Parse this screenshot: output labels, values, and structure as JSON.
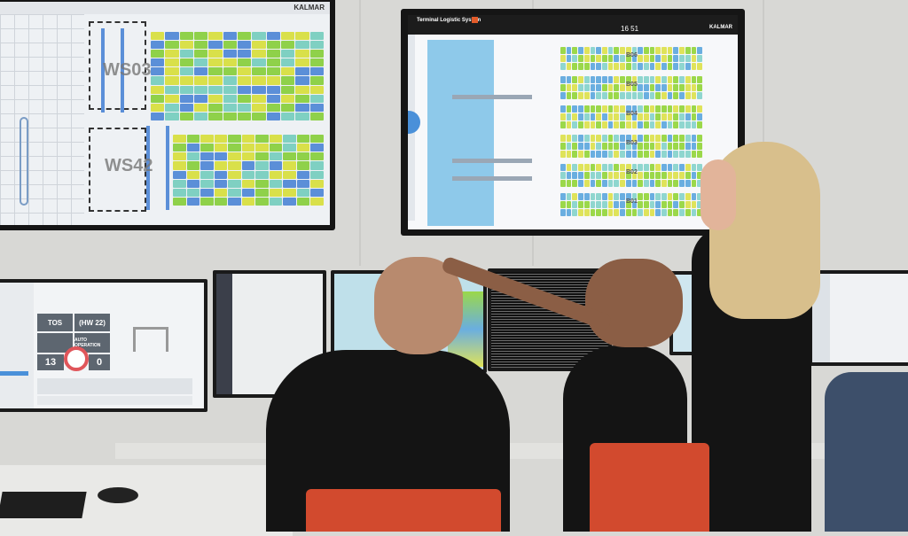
{
  "left_wall_display": {
    "brand": "KALMAR",
    "block_labels": [
      "WS03",
      "WS42"
    ],
    "colors": [
      "#8fd14a",
      "#d9e04a",
      "#5b8fd8",
      "#7fd0c2"
    ]
  },
  "center_wall_display": {
    "app_title": "Terminal Logistic System",
    "clock": "16 51",
    "brand": "KALMAR",
    "block_labels": [
      "B06",
      "B05",
      "B04",
      "B03",
      "B02",
      "B01"
    ],
    "colors": [
      "#9bd84a",
      "#dfe35a",
      "#6aaee0",
      "#8fd6cf"
    ],
    "water_color": "#8ec9ea"
  },
  "left_desk_monitor": {
    "tiles": [
      "TOS",
      "(HW 22)",
      "AUTO OPERATION",
      "13",
      "0"
    ]
  },
  "scene": {
    "chair_color": "#d24a2e",
    "wall_color": "#d8d8d5"
  }
}
